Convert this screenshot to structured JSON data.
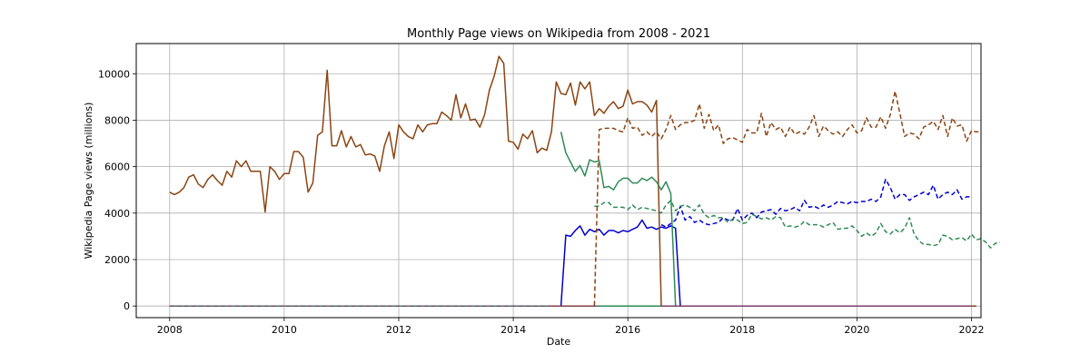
{
  "chart_data": {
    "type": "line",
    "title": "Monthly Page views on Wikipedia from 2008 - 2021",
    "xlabel": "Date",
    "ylabel": "Wikipedia Page views (millions)",
    "xlim": [
      "2007-06",
      "2022-03"
    ],
    "ylim": [
      -500,
      11300
    ],
    "x_ticks": [
      "2008",
      "2010",
      "2012",
      "2014",
      "2016",
      "2018",
      "2020",
      "2022"
    ],
    "y_ticks": [
      0,
      2000,
      4000,
      6000,
      8000,
      10000
    ],
    "grid": true,
    "legend": "none",
    "series": [
      {
        "style": "solid",
        "color": "#0000cc",
        "start": "2008-01",
        "values": [
          0,
          0,
          0,
          0,
          0,
          0,
          0,
          0,
          0,
          0,
          0,
          0,
          0,
          0,
          0,
          0,
          0,
          0,
          0,
          0,
          0,
          0,
          0,
          0,
          0,
          0,
          0,
          0,
          0,
          0,
          0,
          0,
          0,
          0,
          0,
          0,
          0,
          0,
          0,
          0,
          0,
          0,
          0,
          0,
          0,
          0,
          0,
          0,
          0,
          0,
          0,
          0,
          0,
          0,
          0,
          0,
          0,
          0,
          0,
          0,
          0,
          0,
          0,
          0,
          0,
          0,
          0,
          0,
          0,
          0,
          0,
          0,
          0,
          0,
          0,
          0,
          0,
          0,
          0,
          0,
          0,
          0,
          0,
          3050,
          3000,
          3250,
          3450,
          3050,
          3300,
          3200,
          3300,
          3050,
          3250,
          3250,
          3150,
          3250,
          3200,
          3300,
          3400,
          3700,
          3350,
          3400,
          3300,
          3400,
          3350,
          3450,
          3350,
          0,
          0,
          0,
          0,
          0,
          0,
          0,
          0,
          0,
          0,
          0,
          0,
          0,
          0,
          0,
          0,
          0,
          0,
          0,
          0,
          0,
          0,
          0,
          0,
          0,
          0,
          0,
          0,
          0,
          0,
          0,
          0,
          0,
          0,
          0,
          0,
          0,
          0,
          0,
          0,
          0,
          0,
          0,
          0,
          0,
          0,
          0,
          0,
          0,
          0,
          0,
          0,
          0,
          0,
          0,
          0,
          0,
          0,
          0,
          0,
          0,
          0,
          0
        ]
      },
      {
        "style": "solid",
        "color": "#2e8b57",
        "start": "2008-01",
        "values": [
          0,
          0,
          0,
          0,
          0,
          0,
          0,
          0,
          0,
          0,
          0,
          0,
          0,
          0,
          0,
          0,
          0,
          0,
          0,
          0,
          0,
          0,
          0,
          0,
          0,
          0,
          0,
          0,
          0,
          0,
          0,
          0,
          0,
          0,
          0,
          0,
          0,
          0,
          0,
          0,
          0,
          0,
          0,
          0,
          0,
          0,
          0,
          0,
          0,
          0,
          0,
          0,
          0,
          0,
          0,
          0,
          0,
          0,
          0,
          0,
          0,
          0,
          0,
          0,
          0,
          0,
          0,
          0,
          0,
          0,
          0,
          0,
          0,
          0,
          0,
          0,
          0,
          0,
          0,
          0,
          0,
          0,
          0,
          0,
          0,
          0,
          0,
          0,
          0,
          0,
          0,
          0,
          0,
          0,
          0,
          0,
          0,
          0,
          0,
          0,
          0,
          0,
          0,
          0,
          0,
          0,
          0,
          0,
          0,
          0,
          0,
          0,
          0,
          0,
          0,
          0,
          0,
          0,
          0,
          0,
          0,
          0,
          0,
          0,
          0,
          0,
          0,
          0,
          0,
          0,
          0,
          0,
          0,
          0,
          0,
          0,
          0,
          0,
          0,
          0,
          0,
          0,
          0,
          0,
          0,
          0,
          0,
          0,
          0,
          0,
          0,
          0,
          0,
          0,
          0,
          0,
          0,
          0,
          0,
          0,
          0,
          0,
          0,
          0,
          0,
          0,
          0,
          0,
          0
        ]
      },
      {
        "style": "dashed",
        "color": "#0000cc",
        "start": "2016-08",
        "values": [
          3500,
          3400,
          3550,
          3700,
          4300,
          3700,
          3850,
          3600,
          3700,
          3550,
          3500,
          3550,
          3600,
          3800,
          3700,
          3700,
          4200,
          3700,
          3900,
          4000,
          3800,
          4050,
          4100,
          4150,
          3950,
          4200,
          4100,
          4150,
          4250,
          4100,
          4550,
          4250,
          4300,
          4200,
          4350,
          4250,
          4350,
          4500,
          4450,
          4400,
          4500,
          4450,
          4500,
          4500,
          4600,
          4500,
          4700,
          5450,
          5100,
          4600,
          4800,
          4800,
          4550,
          4700,
          4800,
          4900,
          4800,
          5200,
          4600,
          4800,
          4900,
          4800,
          5000,
          4600,
          4700,
          4700
        ]
      },
      {
        "style": "dashed",
        "color": "#2e8b57",
        "start": "2015-06",
        "values": [
          4300,
          4300,
          4450,
          4450,
          4250,
          4250,
          4250,
          4150,
          4350,
          4150,
          4250,
          4200,
          4150,
          4100,
          4000,
          4350,
          4550,
          4100,
          4300,
          4350,
          4250,
          4100,
          4350,
          3950,
          3800,
          3900,
          3800,
          3800,
          3600,
          3750,
          3700,
          3550,
          3600,
          3950,
          3850,
          3750,
          3800,
          3700,
          3850,
          3800,
          3400,
          3450,
          3400,
          3450,
          3650,
          3500,
          3500,
          3500,
          3400,
          3500,
          3600,
          3300,
          3350,
          3350,
          3450,
          3250,
          3000,
          3150,
          3000,
          3150,
          3550,
          3200,
          3100,
          3300,
          3150,
          3350,
          3800,
          3100,
          2800,
          2650,
          2650,
          2600,
          2650,
          3050,
          3000,
          2850,
          2900,
          2950,
          2800,
          3100,
          2850,
          2900,
          2750,
          2500,
          2700,
          2750
        ]
      },
      {
        "style": "solid",
        "color": "#8b4513",
        "start": "2008-01",
        "values": [
          4900,
          4800,
          4900,
          5100,
          5550,
          5650,
          5250,
          5100,
          5450,
          5650,
          5400,
          5200,
          5800,
          5550,
          6250,
          6000,
          6250,
          5800,
          5800,
          5800,
          4050,
          6000,
          5800,
          5450,
          5700,
          5700,
          6650,
          6650,
          6400,
          4900,
          5300,
          7350,
          7500,
          10150,
          6900,
          6900,
          7550,
          6850,
          7300,
          6850,
          6950,
          6500,
          6550,
          6450,
          5800,
          6900,
          7500,
          6350,
          7800,
          7500,
          7300,
          7200,
          7800,
          7500,
          7800,
          7850,
          7850,
          8350,
          8200,
          8000,
          9100,
          8100,
          8700,
          8000,
          8050,
          7700,
          8250,
          9300,
          9900,
          10750,
          10450,
          7100,
          7050,
          6750,
          7400,
          7200,
          7550,
          6600,
          6800,
          6700,
          7500,
          9650,
          9150,
          9100,
          9600,
          8650,
          9650,
          9350,
          9650,
          8200,
          8500,
          8300,
          8600,
          8800,
          8500,
          8600,
          9300,
          8700,
          8800,
          8800,
          8650,
          8350,
          8850,
          0,
          0,
          0,
          0,
          0,
          0,
          0,
          0,
          0,
          0,
          0,
          0,
          0,
          0,
          0,
          0,
          0,
          0,
          0,
          0,
          0,
          0,
          0,
          0,
          0,
          0,
          0,
          0,
          0,
          0,
          0,
          0,
          0,
          0,
          0,
          0,
          0,
          0,
          0,
          0,
          0,
          0,
          0,
          0,
          0,
          0,
          0,
          0,
          0,
          0,
          0,
          0,
          0,
          0,
          0,
          0,
          0,
          0,
          0,
          0,
          0,
          0,
          0,
          0,
          0,
          0,
          0
        ]
      },
      {
        "style": "solid",
        "color": "#2e8b57",
        "start": "2014-11",
        "values": [
          7500,
          6600,
          6200,
          5800,
          6050,
          5600,
          6300,
          6200,
          6250,
          5100,
          5150,
          5000,
          5350,
          5500,
          5500,
          5300,
          5300,
          5500,
          5400,
          5550,
          5350,
          5000,
          5350,
          4850,
          0
        ]
      },
      {
        "style": "dashed",
        "color": "#8b4513",
        "start": "2014-09",
        "values": [
          0,
          0,
          0,
          0,
          0,
          0,
          0,
          0,
          0,
          0,
          7600,
          7650,
          7650,
          7650,
          7550,
          7500,
          8100,
          7650,
          7700,
          7350,
          7500,
          7300,
          7500,
          7200,
          7600,
          8200,
          7600,
          7800,
          7900,
          7900,
          8000,
          8700,
          7650,
          8250,
          7550,
          7800,
          7000,
          7200,
          7250,
          7150,
          7050,
          7600,
          7450,
          7450,
          8300,
          7300,
          7900,
          7600,
          7700,
          7300,
          7700,
          7400,
          7500,
          7400,
          7700,
          8200,
          7300,
          7750,
          7550,
          7400,
          7500,
          7300,
          7600,
          7800,
          7450,
          7550,
          8100,
          7700,
          7700,
          8150,
          7650,
          8250,
          9250,
          8300,
          7300,
          7450,
          7400,
          7200,
          7700,
          7800,
          7950,
          7600,
          8200,
          7300,
          8100,
          7750,
          7800,
          7100,
          7550,
          7500,
          7500
        ]
      },
      {
        "style": "solid",
        "color": "#7b3f6e",
        "start": "2016-08",
        "values": [
          0,
          0,
          0,
          0,
          0,
          0,
          0,
          0,
          0,
          0,
          0,
          0,
          0,
          0,
          0,
          0,
          0,
          0,
          0,
          0,
          0,
          0,
          0,
          0,
          0,
          0,
          0,
          0,
          0,
          0,
          0,
          0,
          0,
          0,
          0,
          0,
          0,
          0,
          0,
          0,
          0,
          0,
          0,
          0,
          0,
          0,
          0,
          0,
          0,
          0,
          0,
          0,
          0,
          0,
          0,
          0,
          0,
          0,
          0,
          0,
          0,
          0,
          0,
          0,
          0,
          0
        ]
      },
      {
        "style": "dashed",
        "color": "#7b3f6e",
        "start": "2008-01",
        "values": [
          0,
          0,
          0,
          0,
          0,
          0,
          0,
          0,
          0,
          0,
          0,
          0,
          0,
          0,
          0,
          0,
          0,
          0,
          0,
          0,
          0,
          0,
          0,
          0,
          0,
          0,
          0,
          0,
          0,
          0,
          0,
          0,
          0,
          0,
          0,
          0,
          0,
          0,
          0,
          0,
          0,
          0,
          0,
          0,
          0,
          0,
          0,
          0,
          0,
          0,
          0,
          0,
          0,
          0,
          0,
          0,
          0,
          0,
          0,
          0,
          0,
          0,
          0,
          0,
          0,
          0,
          0,
          0,
          0,
          0,
          0,
          0,
          0,
          0,
          0,
          0,
          0,
          0,
          0,
          0,
          0,
          0,
          0,
          0,
          0,
          0,
          0,
          0,
          0,
          0,
          0
        ]
      }
    ]
  }
}
